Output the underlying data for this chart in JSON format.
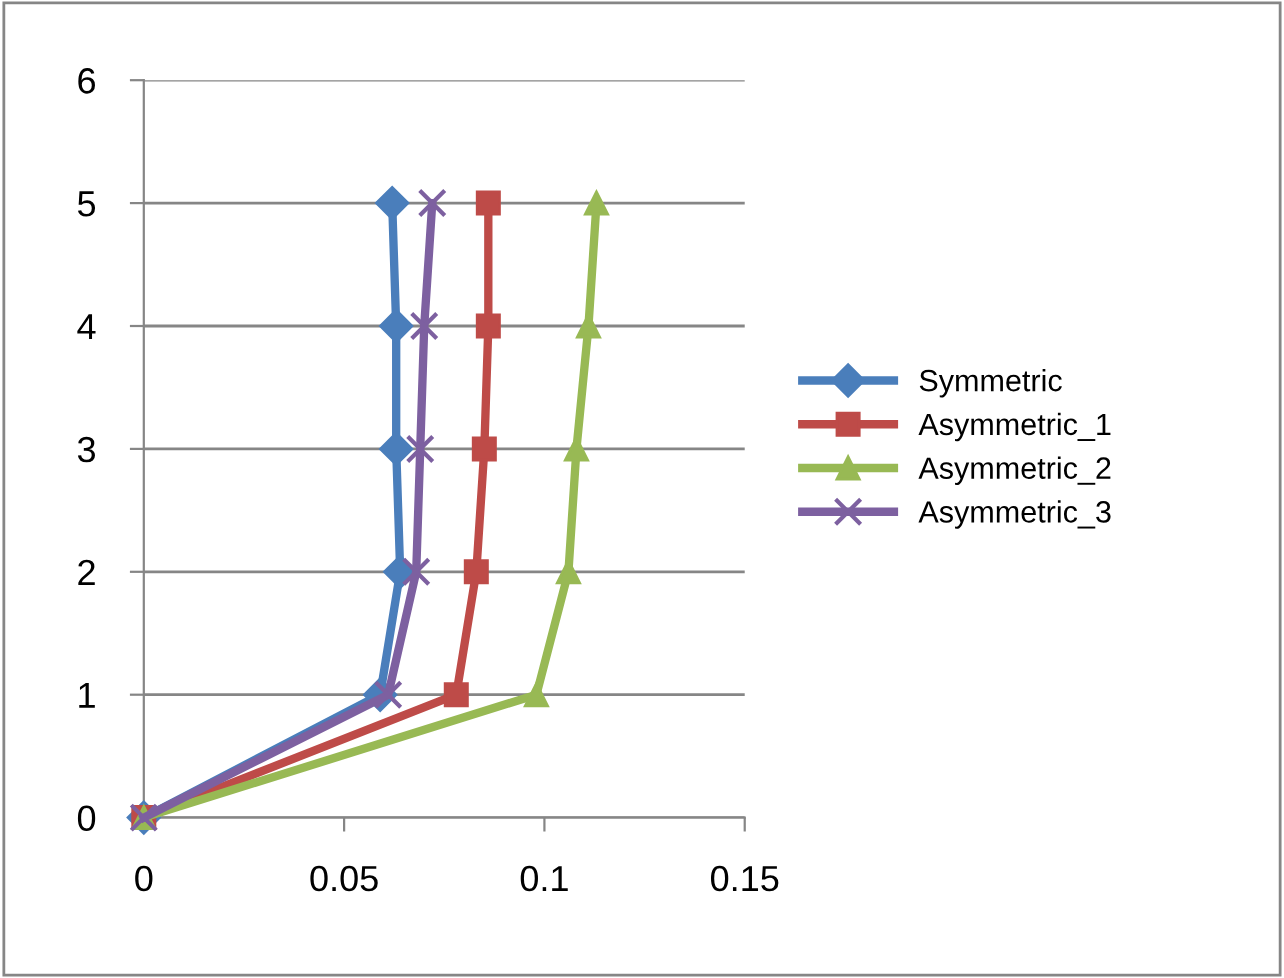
{
  "chart_data": {
    "type": "line",
    "xlim": [
      0,
      0.15
    ],
    "xticks": [
      0,
      0.05,
      0.1,
      0.15
    ],
    "ylim": [
      0,
      6
    ],
    "yticks": [
      0,
      1,
      2,
      3,
      4,
      5,
      6
    ],
    "grid": "y",
    "legend": "right",
    "series": [
      {
        "name": "Symmetric",
        "color": "#4a7ebb",
        "marker": "diamond",
        "x": [
          0,
          0.059,
          0.064,
          0.063,
          0.063,
          0.062
        ],
        "values": [
          0,
          1,
          2,
          3,
          4,
          5
        ]
      },
      {
        "name": "Asymmetric_1",
        "color": "#be4b48",
        "marker": "square",
        "x": [
          0,
          0.078,
          0.083,
          0.085,
          0.086,
          0.086
        ],
        "values": [
          0,
          1,
          2,
          3,
          4,
          5
        ]
      },
      {
        "name": "Asymmetric_2",
        "color": "#98b954",
        "marker": "triangle",
        "x": [
          0,
          0.098,
          0.106,
          0.108,
          0.111,
          0.113
        ],
        "values": [
          0,
          1,
          2,
          3,
          4,
          5
        ]
      },
      {
        "name": "Asymmetric_3",
        "color": "#7d60a0",
        "marker": "cross",
        "x": [
          0,
          0.061,
          0.068,
          0.069,
          0.07,
          0.072
        ],
        "values": [
          0,
          1,
          2,
          3,
          4,
          5
        ]
      }
    ]
  }
}
